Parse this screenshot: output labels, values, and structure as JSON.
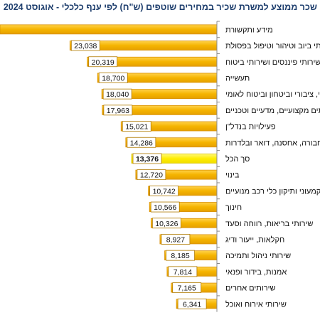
{
  "title": "שכר ממוצע למשרת שכיר במחירים שוטפים (ש\"ח) לפי ענף כלכלי - אוגוסט 2024",
  "colors": {
    "bar": "#f5b400",
    "bar_highlight": "#ffee00",
    "title": "#1f3f6e"
  },
  "chart_data": {
    "type": "bar",
    "orientation": "horizontal",
    "title": "שכר ממוצע למשרת שכיר במחירים שוטפים (ש\"ח) לפי ענף כלכלי - אוגוסט 2024",
    "xlim": [
      0,
      34000
    ],
    "categories": [
      "מידע ותקשורת",
      "שירותי ביוב וטיהור וטיפול בפסולת",
      "שירותי פיננסים ושירותי ביטוח",
      "תעשייה",
      "מינהל מקומי, ציבורי וביטחון וביטוח לאומי",
      "שירותים מקצועיים, מדעיים וטכניים",
      "פעילויות בנדל\"ן",
      "תחבורה, אחסנה, דואר ובלדרות",
      "סך הכל",
      "בינוי",
      "מסחר סיטוני וקמעוני ותיקון כלי רכב מנועיים",
      "חינוך",
      "שירותי בריאות, רווחה וסעד",
      "חקלאות, ייעור ודיג",
      "שירותי ניהול ותמיכה",
      "אמנות, בידור ופנאי",
      "שירותים אחרים",
      "שירותי אירוח ואוכל"
    ],
    "values": [
      null,
      23038,
      20319,
      18700,
      18040,
      17963,
      15021,
      14286,
      13376,
      12720,
      10742,
      10566,
      10326,
      8927,
      8185,
      7814,
      7165,
      6341
    ],
    "value_labels": [
      "",
      "23,038",
      "20,319",
      "18,700",
      "18,040",
      "17,963",
      "15,021",
      "14,286",
      "13,376",
      "12,720",
      "10,742",
      "10,566",
      "10,326",
      "8,927",
      "8,185",
      "7,814",
      "7,165",
      "6,341"
    ],
    "highlight_index": 8
  }
}
